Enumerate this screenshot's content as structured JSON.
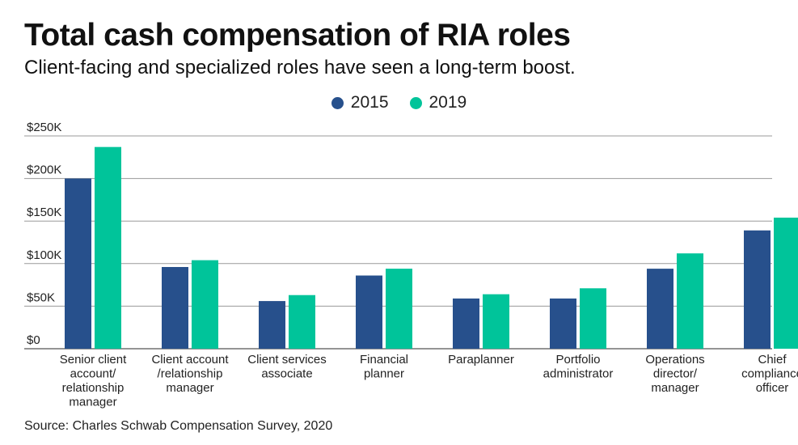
{
  "header": {
    "title": "Total cash compensation of RIA roles",
    "subtitle": "Client-facing and specialized roles have seen a long-term boost."
  },
  "source": "Source: Charles Schwab Compensation Survey, 2020",
  "colors": {
    "s2015": "#27508c",
    "s2019": "#00c49a",
    "grid": "#9a9a9a",
    "axis": "#555555"
  },
  "chart_data": {
    "type": "bar",
    "title": "Total cash compensation of RIA roles",
    "subtitle": "Client-facing and specialized roles have seen a long-term boost.",
    "xlabel": "",
    "ylabel": "",
    "ylim": [
      0,
      250000
    ],
    "yticks": [
      0,
      50000,
      100000,
      150000,
      200000,
      250000
    ],
    "ytick_labels": [
      "$0",
      "$50K",
      "$100K",
      "$150K",
      "$200K",
      "$250K"
    ],
    "legend_position": "top-center",
    "categories": [
      [
        "Senior client",
        "account/",
        "relationship",
        "manager"
      ],
      [
        "Client account",
        "/relationship",
        "manager"
      ],
      [
        "Client services",
        "associate"
      ],
      [
        "Financial",
        "planner"
      ],
      [
        "Paraplanner"
      ],
      [
        "Portfolio",
        "administrator"
      ],
      [
        "Operations",
        "director/",
        "manager"
      ],
      [
        "Chief",
        "compliance",
        "officer"
      ]
    ],
    "series": [
      {
        "name": "2015",
        "values": [
          200000,
          96000,
          56000,
          86000,
          59000,
          59000,
          94000,
          139000
        ]
      },
      {
        "name": "2019",
        "values": [
          237000,
          104000,
          63000,
          94000,
          64000,
          71000,
          112000,
          154000
        ]
      }
    ]
  }
}
